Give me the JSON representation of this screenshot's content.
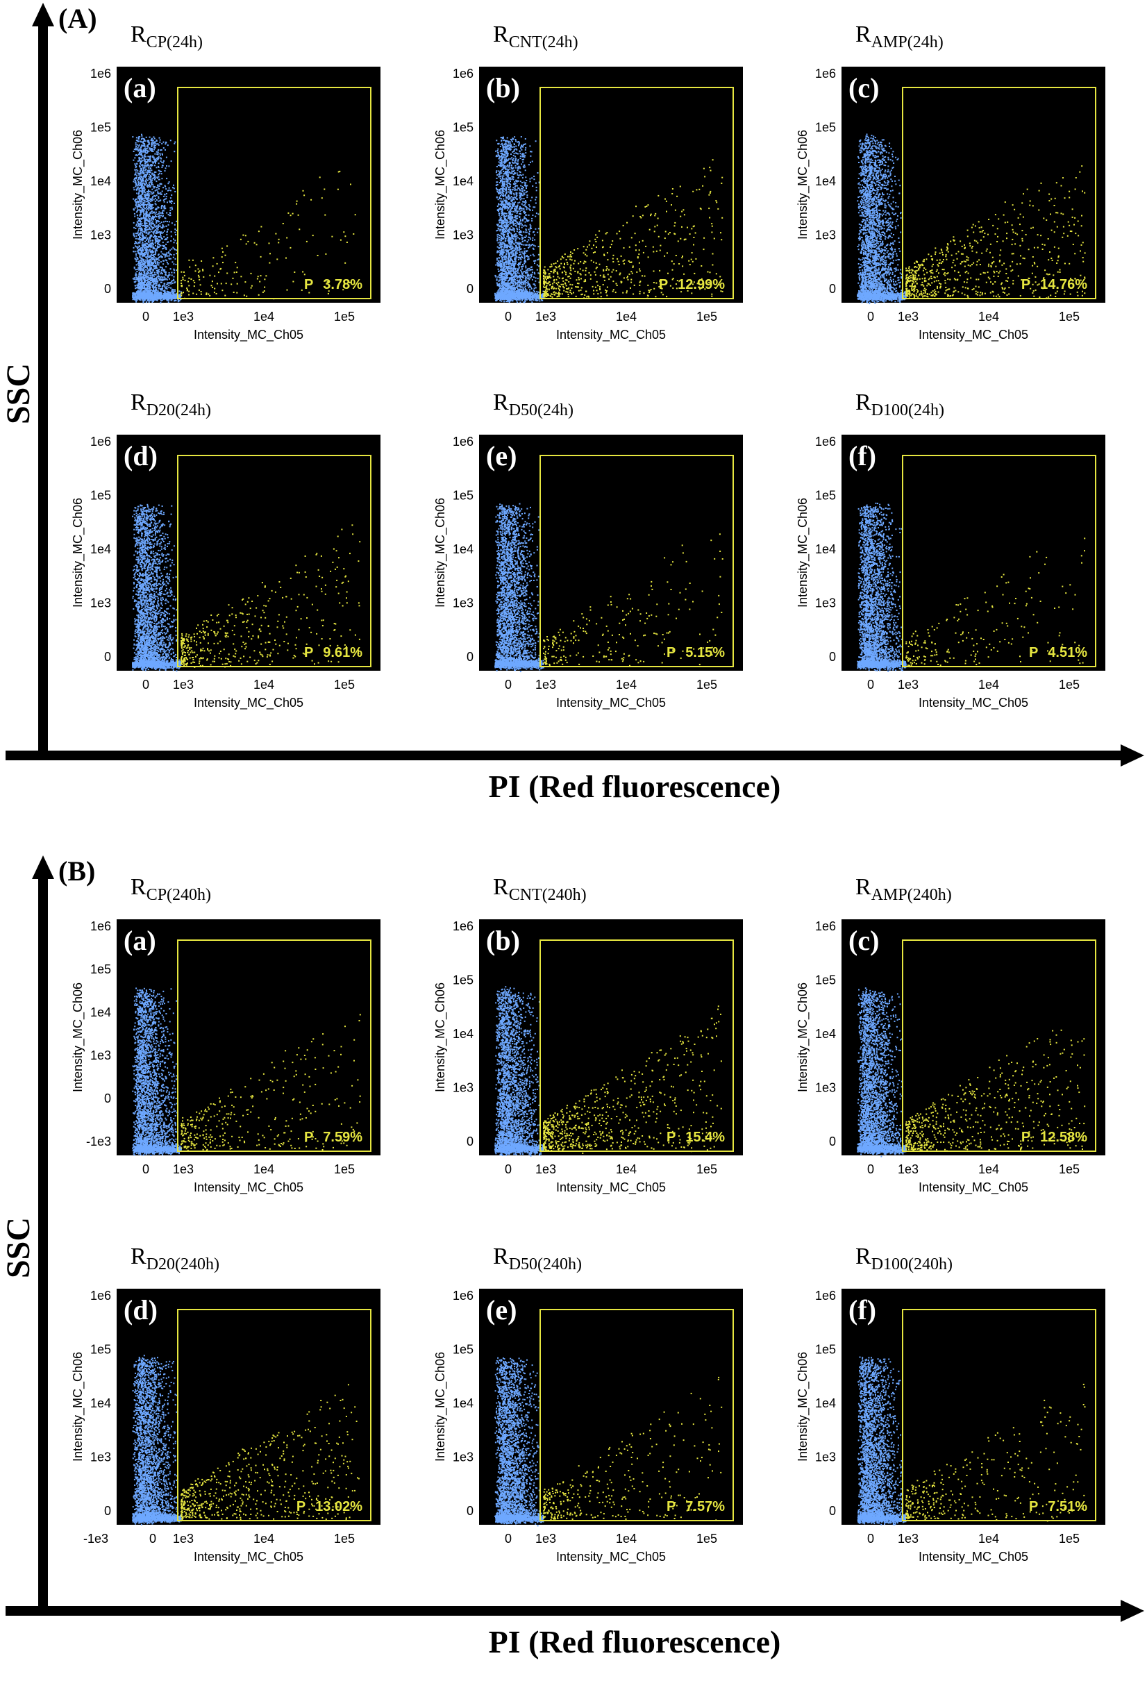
{
  "figure": {
    "y_axis_label": "SSC",
    "x_axis_label": "PI (Red fluorescence)",
    "colors": {
      "plot_background": "#000000",
      "gated_dots": "#e6e640",
      "ungated_dots": "#6ea8ff",
      "gate_border": "#e6e640",
      "axis_arrow": "#000000"
    }
  },
  "sections": [
    {
      "label": "(A)",
      "time": "24h",
      "panels": [
        {
          "letter": "(a)",
          "title_main": "R",
          "title_sub": "CP(24h)",
          "gate_value": "3.78%",
          "x_tick_labels": [
            "0",
            "1e3",
            "1e4",
            "1e5"
          ],
          "y_tick_labels": [
            "0",
            "1e3",
            "1e4",
            "1e5",
            "1e6"
          ],
          "x_axis_label": "Intensity_MC_Ch05",
          "y_axis_label": "Intensity_MC_Ch06"
        },
        {
          "letter": "(b)",
          "title_main": "R",
          "title_sub": "CNT(24h)",
          "gate_value": "12.99%",
          "x_tick_labels": [
            "0",
            "1e3",
            "1e4",
            "1e5"
          ],
          "y_tick_labels": [
            "0",
            "1e3",
            "1e4",
            "1e5",
            "1e6"
          ],
          "x_axis_label": "Intensity_MC_Ch05",
          "y_axis_label": "Intensity_MC_Ch06"
        },
        {
          "letter": "(c)",
          "title_main": "R",
          "title_sub": "AMP(24h)",
          "gate_value": "14.76%",
          "x_tick_labels": [
            "0",
            "1e3",
            "1e4",
            "1e5"
          ],
          "y_tick_labels": [
            "0",
            "1e3",
            "1e4",
            "1e5",
            "1e6"
          ],
          "x_axis_label": "Intensity_MC_Ch05",
          "y_axis_label": "Intensity_MC_Ch06"
        },
        {
          "letter": "(d)",
          "title_main": "R",
          "title_sub": "D20(24h)",
          "gate_value": "9.61%",
          "x_tick_labels": [
            "0",
            "1e3",
            "1e4",
            "1e5"
          ],
          "y_tick_labels": [
            "0",
            "1e3",
            "1e4",
            "1e5",
            "1e6"
          ],
          "x_axis_label": "Intensity_MC_Ch05",
          "y_axis_label": "Intensity_MC_Ch06"
        },
        {
          "letter": "(e)",
          "title_main": "R",
          "title_sub": "D50(24h)",
          "gate_value": "5.15%",
          "x_tick_labels": [
            "0",
            "1e3",
            "1e4",
            "1e5"
          ],
          "y_tick_labels": [
            "0",
            "1e3",
            "1e4",
            "1e5",
            "1e6"
          ],
          "x_axis_label": "Intensity_MC_Ch05",
          "y_axis_label": "Intensity_MC_Ch06"
        },
        {
          "letter": "(f)",
          "title_main": "R",
          "title_sub": "D100(24h)",
          "gate_value": "4.51%",
          "x_tick_labels": [
            "0",
            "1e3",
            "1e4",
            "1e5"
          ],
          "y_tick_labels": [
            "0",
            "1e3",
            "1e4",
            "1e5",
            "1e6"
          ],
          "x_axis_label": "Intensity_MC_Ch05",
          "y_axis_label": "Intensity_MC_Ch06"
        }
      ]
    },
    {
      "label": "(B)",
      "time": "240h",
      "panels": [
        {
          "letter": "(a)",
          "title_main": "R",
          "title_sub": "CP(240h)",
          "gate_value": "7.59%",
          "x_tick_labels": [
            "0",
            "1e3",
            "1e4",
            "1e5"
          ],
          "y_tick_labels": [
            "-1e3",
            "0",
            "1e3",
            "1e4",
            "1e5",
            "1e6"
          ],
          "x_axis_label": "Intensity_MC_Ch05",
          "y_axis_label": "Intensity_MC_Ch06"
        },
        {
          "letter": "(b)",
          "title_main": "R",
          "title_sub": "CNT(240h)",
          "gate_value": "15.4%",
          "x_tick_labels": [
            "0",
            "1e3",
            "1e4",
            "1e5"
          ],
          "y_tick_labels": [
            "0",
            "1e3",
            "1e4",
            "1e5",
            "1e6"
          ],
          "x_axis_label": "Intensity_MC_Ch05",
          "y_axis_label": "Intensity_MC_Ch06"
        },
        {
          "letter": "(c)",
          "title_main": "R",
          "title_sub": "AMP(240h)",
          "gate_value": "12.58%",
          "x_tick_labels": [
            "0",
            "1e3",
            "1e4",
            "1e5"
          ],
          "y_tick_labels": [
            "0",
            "1e3",
            "1e4",
            "1e5",
            "1e6"
          ],
          "x_axis_label": "Intensity_MC_Ch05",
          "y_axis_label": "Intensity_MC_Ch06"
        },
        {
          "letter": "(d)",
          "title_main": "R",
          "title_sub": "D20(240h)",
          "gate_value": "13.02%",
          "x_tick_labels": [
            "-1e3",
            "0",
            "1e3",
            "1e4",
            "1e5"
          ],
          "y_tick_labels": [
            "0",
            "1e3",
            "1e4",
            "1e5",
            "1e6"
          ],
          "x_axis_label": "Intensity_MC_Ch05",
          "y_axis_label": "Intensity_MC_Ch06"
        },
        {
          "letter": "(e)",
          "title_main": "R",
          "title_sub": "D50(240h)",
          "gate_value": "7.57%",
          "x_tick_labels": [
            "0",
            "1e3",
            "1e4",
            "1e5"
          ],
          "y_tick_labels": [
            "0",
            "1e3",
            "1e4",
            "1e5",
            "1e6"
          ],
          "x_axis_label": "Intensity_MC_Ch05",
          "y_axis_label": "Intensity_MC_Ch06"
        },
        {
          "letter": "(f)",
          "title_main": "R",
          "title_sub": "D100(240h)",
          "gate_value": "7.51%",
          "x_tick_labels": [
            "0",
            "1e3",
            "1e4",
            "1e5"
          ],
          "y_tick_labels": [
            "0",
            "1e3",
            "1e4",
            "1e5",
            "1e6"
          ],
          "x_axis_label": "Intensity_MC_Ch05",
          "y_axis_label": "Intensity_MC_Ch06"
        }
      ]
    }
  ],
  "chart_data": [
    {
      "type": "scatter",
      "section": "(A)",
      "panel": "(a)",
      "title": "RCP(24h)",
      "xlabel": "Intensity_MC_Ch05",
      "ylabel": "Intensity_MC_Ch06",
      "x_scale": "log",
      "y_scale": "log",
      "gate_label": "P",
      "gate_percent": 3.78
    },
    {
      "type": "scatter",
      "section": "(A)",
      "panel": "(b)",
      "title": "RCNT(24h)",
      "xlabel": "Intensity_MC_Ch05",
      "ylabel": "Intensity_MC_Ch06",
      "x_scale": "log",
      "y_scale": "log",
      "gate_label": "P",
      "gate_percent": 12.99
    },
    {
      "type": "scatter",
      "section": "(A)",
      "panel": "(c)",
      "title": "RAMP(24h)",
      "xlabel": "Intensity_MC_Ch05",
      "ylabel": "Intensity_MC_Ch06",
      "x_scale": "log",
      "y_scale": "log",
      "gate_label": "P",
      "gate_percent": 14.76
    },
    {
      "type": "scatter",
      "section": "(A)",
      "panel": "(d)",
      "title": "RD20(24h)",
      "xlabel": "Intensity_MC_Ch05",
      "ylabel": "Intensity_MC_Ch06",
      "x_scale": "log",
      "y_scale": "log",
      "gate_label": "P",
      "gate_percent": 9.61
    },
    {
      "type": "scatter",
      "section": "(A)",
      "panel": "(e)",
      "title": "RD50(24h)",
      "xlabel": "Intensity_MC_Ch05",
      "ylabel": "Intensity_MC_Ch06",
      "x_scale": "log",
      "y_scale": "log",
      "gate_label": "P",
      "gate_percent": 5.15
    },
    {
      "type": "scatter",
      "section": "(A)",
      "panel": "(f)",
      "title": "RD100(24h)",
      "xlabel": "Intensity_MC_Ch05",
      "ylabel": "Intensity_MC_Ch06",
      "x_scale": "log",
      "y_scale": "log",
      "gate_label": "P",
      "gate_percent": 4.51
    },
    {
      "type": "scatter",
      "section": "(B)",
      "panel": "(a)",
      "title": "RCP(240h)",
      "xlabel": "Intensity_MC_Ch05",
      "ylabel": "Intensity_MC_Ch06",
      "x_scale": "log",
      "y_scale": "log",
      "gate_label": "P",
      "gate_percent": 7.59
    },
    {
      "type": "scatter",
      "section": "(B)",
      "panel": "(b)",
      "title": "RCNT(240h)",
      "xlabel": "Intensity_MC_Ch05",
      "ylabel": "Intensity_MC_Ch06",
      "x_scale": "log",
      "y_scale": "log",
      "gate_label": "P",
      "gate_percent": 15.4
    },
    {
      "type": "scatter",
      "section": "(B)",
      "panel": "(c)",
      "title": "RAMP(240h)",
      "xlabel": "Intensity_MC_Ch05",
      "ylabel": "Intensity_MC_Ch06",
      "x_scale": "log",
      "y_scale": "log",
      "gate_label": "P",
      "gate_percent": 12.58
    },
    {
      "type": "scatter",
      "section": "(B)",
      "panel": "(d)",
      "title": "RD20(240h)",
      "xlabel": "Intensity_MC_Ch05",
      "ylabel": "Intensity_MC_Ch06",
      "x_scale": "log",
      "y_scale": "log",
      "gate_label": "P",
      "gate_percent": 13.02
    },
    {
      "type": "scatter",
      "section": "(B)",
      "panel": "(e)",
      "title": "RD50(240h)",
      "xlabel": "Intensity_MC_Ch05",
      "ylabel": "Intensity_MC_Ch06",
      "x_scale": "log",
      "y_scale": "log",
      "gate_label": "P",
      "gate_percent": 7.57
    },
    {
      "type": "scatter",
      "section": "(B)",
      "panel": "(f)",
      "title": "RD100(240h)",
      "xlabel": "Intensity_MC_Ch05",
      "ylabel": "Intensity_MC_Ch06",
      "x_scale": "log",
      "y_scale": "log",
      "gate_label": "P",
      "gate_percent": 7.51
    }
  ]
}
